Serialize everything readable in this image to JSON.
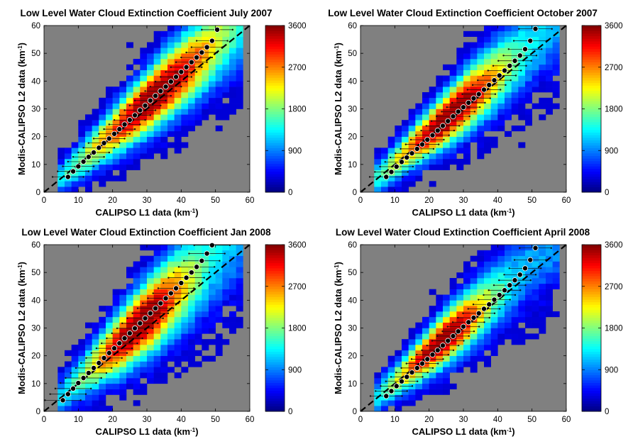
{
  "chart_data": [
    {
      "type": "heatmap",
      "title": "Low Level Water Cloud Extinction Coefficient July 2007",
      "xlabel": "CALIPSO L1 data (km",
      "ylabel": "Modis-CALIPSO L2 data (km",
      "unit_sup": "-1",
      "unit_close": ")",
      "xlim": [
        0,
        60
      ],
      "ylim": [
        0,
        60
      ],
      "xticks": [
        "0",
        "10",
        "20",
        "30",
        "40",
        "50",
        "60"
      ],
      "yticks": [
        "0",
        "10",
        "20",
        "30",
        "40",
        "50",
        "60"
      ],
      "colorbar_range": [
        0,
        3600
      ],
      "colorbar_ticks": [
        "0",
        "900",
        "1800",
        "2700",
        "3600"
      ],
      "colormap": "jet",
      "background_color": "#808080",
      "reference_line": {
        "style": "dashed",
        "x": [
          0,
          60
        ],
        "y": [
          0,
          60
        ]
      },
      "density": {
        "slope": 1.07,
        "offset": 0,
        "width_base": 3.2,
        "width_scale": 0.14,
        "peak_x": 32,
        "peak_spread": 14,
        "x_range": [
          5,
          58
        ]
      },
      "means": {
        "x": [
          7,
          8.5,
          10,
          11.5,
          13,
          14.5,
          16,
          17.5,
          19,
          20.5,
          22,
          23.5,
          25,
          26.5,
          28,
          29.5,
          31,
          32.5,
          34,
          35.5,
          37,
          38.5,
          40,
          41.5,
          43,
          44.5,
          46,
          47.5,
          49,
          50.5
        ],
        "y": [
          5.5,
          7.5,
          9.3,
          11,
          12.7,
          14.3,
          16,
          17.7,
          19.3,
          21,
          22.7,
          24.4,
          26,
          27.7,
          29.5,
          31.2,
          33,
          34.7,
          36.4,
          38,
          39.8,
          41.5,
          43.3,
          45,
          46.8,
          48.5,
          50.3,
          52.2,
          54.5,
          58.5
        ]
      },
      "error_bar_half_width": 4.5
    },
    {
      "type": "heatmap",
      "title": "Low Level Water Cloud Extinction Coefficient October 2007",
      "xlabel": "CALIPSO L1 data (km",
      "ylabel": "Modis-CALIPSO L2 data (km",
      "unit_sup": "-1",
      "unit_close": ")",
      "xlim": [
        0,
        60
      ],
      "ylim": [
        0,
        60
      ],
      "xticks": [
        "0",
        "10",
        "20",
        "30",
        "40",
        "50",
        "60"
      ],
      "yticks": [
        "0",
        "10",
        "20",
        "30",
        "40",
        "50",
        "60"
      ],
      "colorbar_range": [
        0,
        3600
      ],
      "colorbar_ticks": [
        "0",
        "900",
        "1800",
        "2700",
        "3600"
      ],
      "colormap": "jet",
      "background_color": "#808080",
      "reference_line": {
        "style": "dashed",
        "x": [
          0,
          60
        ],
        "y": [
          0,
          60
        ]
      },
      "density": {
        "slope": 1.06,
        "offset": 0,
        "width_base": 3.0,
        "width_scale": 0.14,
        "peak_x": 26,
        "peak_spread": 12,
        "x_range": [
          4,
          57
        ]
      },
      "means": {
        "x": [
          7.5,
          9,
          10.5,
          12,
          13.5,
          15,
          16.5,
          18,
          19.5,
          21,
          22.5,
          24,
          25.5,
          27,
          28.5,
          30,
          31.5,
          33,
          34.5,
          36,
          37.5,
          39,
          40.5,
          42,
          43.5,
          45,
          46.5,
          48,
          49.5,
          51
        ],
        "y": [
          5.5,
          7.3,
          9.2,
          10.9,
          12.5,
          14,
          15.6,
          17.2,
          18.9,
          20.5,
          22.2,
          23.9,
          25.6,
          27.3,
          29,
          30.6,
          32.2,
          33.8,
          35.3,
          36.9,
          38.6,
          40.3,
          42,
          43.8,
          45.5,
          47.3,
          49.2,
          51.5,
          54.5,
          58.8
        ]
      },
      "error_bar_half_width": 4.8
    },
    {
      "type": "heatmap",
      "title": "Low Level Water Cloud Extinction Coefficient Jan 2008",
      "xlabel": "CALIPSO L1 data (km",
      "ylabel": "Modis-CALIPSO L2 data (km",
      "unit_sup": "-1",
      "unit_close": ")",
      "xlim": [
        0,
        60
      ],
      "ylim": [
        0,
        60
      ],
      "xticks": [
        "0",
        "10",
        "20",
        "30",
        "40",
        "50",
        "60"
      ],
      "yticks": [
        "0",
        "10",
        "20",
        "30",
        "40",
        "50",
        "60"
      ],
      "colorbar_range": [
        0,
        3600
      ],
      "colorbar_ticks": [
        "0",
        "900",
        "1800",
        "2700",
        "3600"
      ],
      "colormap": "jet",
      "background_color": "#808080",
      "reference_line": {
        "style": "dashed",
        "x": [
          0,
          60
        ],
        "y": [
          0,
          60
        ]
      },
      "density": {
        "slope": 1.12,
        "offset": 0,
        "width_base": 3.6,
        "width_scale": 0.18,
        "peak_x": 28,
        "peak_spread": 11,
        "x_range": [
          4,
          58
        ]
      },
      "means": {
        "x": [
          5.5,
          7,
          8.5,
          10,
          11.5,
          13,
          14.5,
          16,
          17.5,
          19,
          20.5,
          22,
          23.5,
          25,
          26.5,
          28,
          29.5,
          31,
          32.5,
          34,
          35.5,
          37,
          38.5,
          40,
          41.5,
          43,
          44.5,
          46,
          47.5,
          49
        ],
        "y": [
          4,
          6.2,
          8.2,
          10.2,
          12,
          13.8,
          15.6,
          17.4,
          19.2,
          21,
          22.7,
          24.5,
          26.3,
          28.1,
          29.9,
          31.7,
          33.5,
          35.3,
          37.1,
          38.9,
          40.7,
          42.5,
          44.3,
          46.2,
          48.1,
          50,
          52,
          54.2,
          56.8,
          59.8
        ]
      },
      "error_bar_half_width": 5.2
    },
    {
      "type": "heatmap",
      "title": "Low Level Water Cloud Extinction Coefficient April 2008",
      "xlabel": "CALIPSO L1 data (km",
      "ylabel": "Modis-CALIPSO L2 data (km",
      "unit_sup": "-1",
      "unit_close": ")",
      "xlim": [
        0,
        60
      ],
      "ylim": [
        0,
        60
      ],
      "xticks": [
        "0",
        "10",
        "20",
        "30",
        "40",
        "50",
        "60"
      ],
      "yticks": [
        "0",
        "10",
        "20",
        "30",
        "40",
        "50",
        "60"
      ],
      "colorbar_range": [
        0,
        3600
      ],
      "colorbar_ticks": [
        "0",
        "900",
        "1800",
        "2700",
        "3600"
      ],
      "colormap": "jet",
      "background_color": "#808080",
      "reference_line": {
        "style": "dashed",
        "x": [
          0,
          60
        ],
        "y": [
          0,
          60
        ]
      },
      "density": {
        "slope": 1.06,
        "offset": 0,
        "width_base": 3.0,
        "width_scale": 0.13,
        "peak_x": 24,
        "peak_spread": 10,
        "x_range": [
          4,
          58
        ]
      },
      "means": {
        "x": [
          7.5,
          9,
          10.5,
          12,
          13.5,
          15,
          16.5,
          18,
          19.5,
          21,
          22.5,
          24,
          25.5,
          27,
          28.5,
          30,
          31.5,
          33,
          34.5,
          36,
          37.5,
          39,
          40.5,
          42,
          43.5,
          45,
          46.5,
          48,
          49.5,
          51
        ],
        "y": [
          5.5,
          7.3,
          9.1,
          10.8,
          12.4,
          14,
          15.6,
          17.2,
          18.8,
          20.4,
          22,
          23.7,
          25.4,
          27.1,
          28.8,
          30.5,
          32.1,
          33.7,
          35.3,
          36.9,
          38.5,
          40.2,
          41.9,
          43.6,
          45.4,
          47.2,
          49.2,
          51.5,
          54.5,
          58.8
        ]
      },
      "error_bar_half_width": 4.6
    }
  ]
}
